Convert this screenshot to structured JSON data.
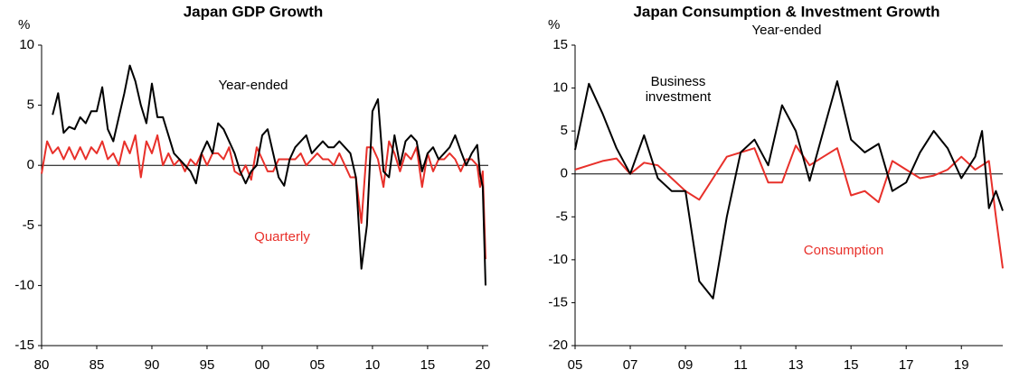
{
  "chart_data": [
    {
      "type": "line",
      "title": "Japan GDP Growth",
      "y_unit": "%",
      "annotations": [
        "Year-ended",
        "Quarterly"
      ],
      "x": [
        1980,
        1980.5,
        1981,
        1981.5,
        1982,
        1982.5,
        1983,
        1983.5,
        1984,
        1984.5,
        1985,
        1985.5,
        1986,
        1986.5,
        1987,
        1987.5,
        1988,
        1988.5,
        1989,
        1989.5,
        1990,
        1990.5,
        1991,
        1991.5,
        1992,
        1992.5,
        1993,
        1993.5,
        1994,
        1994.5,
        1995,
        1995.5,
        1996,
        1996.5,
        1997,
        1997.5,
        1998,
        1998.5,
        1999,
        1999.5,
        2000,
        2000.5,
        2001,
        2001.5,
        2002,
        2002.5,
        2003,
        2003.5,
        2004,
        2004.5,
        2005,
        2005.5,
        2006,
        2006.5,
        2007,
        2007.5,
        2008,
        2008.5,
        2009,
        2009.5,
        2010,
        2010.5,
        2011,
        2011.5,
        2012,
        2012.5,
        2013,
        2013.5,
        2014,
        2014.5,
        2015,
        2015.5,
        2016,
        2016.5,
        2017,
        2017.5,
        2018,
        2018.5,
        2019,
        2019.5,
        2019.75,
        2020,
        2020.25
      ],
      "series": [
        {
          "name": "Year-ended",
          "color": "#000000",
          "values": [
            null,
            null,
            4.2,
            6,
            2.7,
            3.2,
            3,
            4,
            3.5,
            4.5,
            4.5,
            6.5,
            3,
            2,
            4,
            6,
            8.3,
            7,
            5,
            3.5,
            6.8,
            4,
            4,
            2.5,
            1,
            0.5,
            0,
            -0.5,
            -1.5,
            1,
            2,
            1,
            3.5,
            3,
            2,
            1,
            -0.5,
            -1.5,
            -0.5,
            0,
            2.5,
            3,
            1,
            -1,
            -1.7,
            0.5,
            1.5,
            2,
            2.5,
            1,
            1.5,
            2,
            1.5,
            1.5,
            2,
            1.5,
            1,
            -1,
            -8.6,
            -5,
            4.5,
            5.5,
            -0.5,
            -1,
            2.5,
            0,
            2,
            2.5,
            2,
            -0.5,
            1,
            1.5,
            0.5,
            1,
            1.5,
            2.5,
            1.2,
            0,
            1,
            1.7,
            -0.7,
            -1.8,
            -10
          ]
        },
        {
          "name": "Quarterly",
          "color": "#e8302a",
          "values": [
            -0.7,
            2,
            1,
            1.5,
            0.5,
            1.5,
            0.5,
            1.5,
            0.5,
            1.5,
            1,
            2,
            0.5,
            1,
            0,
            2,
            1,
            2.5,
            -1,
            2,
            1,
            2.5,
            0,
            1,
            0,
            0.5,
            -0.5,
            0.5,
            0,
            1,
            0,
            1,
            1,
            0.5,
            1.5,
            -0.5,
            -0.8,
            0,
            -1.2,
            1.5,
            0.5,
            -0.5,
            -0.5,
            0.5,
            0.5,
            0.5,
            0.5,
            1,
            0,
            0.5,
            1,
            0.5,
            0.5,
            0,
            1,
            0,
            -1,
            -1,
            -4.8,
            1.5,
            1.5,
            0.5,
            -1.8,
            2,
            1,
            -0.5,
            1,
            0.5,
            1.5,
            -1.8,
            1,
            -0.5,
            0.5,
            0.5,
            1,
            0.5,
            -0.5,
            0.5,
            0.5,
            0,
            -1.8,
            -0.5,
            -7.8
          ]
        }
      ],
      "xlim": [
        1980,
        2020.5
      ],
      "xticks": [
        {
          "value": 1980,
          "label": "80"
        },
        {
          "value": 1985,
          "label": "85"
        },
        {
          "value": 1990,
          "label": "90"
        },
        {
          "value": 1995,
          "label": "95"
        },
        {
          "value": 2000,
          "label": "00"
        },
        {
          "value": 2005,
          "label": "05"
        },
        {
          "value": 2010,
          "label": "10"
        },
        {
          "value": 2015,
          "label": "15"
        },
        {
          "value": 2020,
          "label": "20"
        }
      ],
      "ylim": [
        -15,
        10
      ],
      "yticks": [
        -15,
        -10,
        -5,
        0,
        5,
        10
      ],
      "grid": false
    },
    {
      "type": "line",
      "title": "Japan Consumption  & Investment Growth",
      "subtitle": "Year-ended",
      "y_unit": "%",
      "annotations": [
        "Business investment",
        "Consumption"
      ],
      "x": [
        2005,
        2005.5,
        2006,
        2006.5,
        2007,
        2007.5,
        2008,
        2008.5,
        2009,
        2009.5,
        2010,
        2010.5,
        2011,
        2011.5,
        2012,
        2012.5,
        2013,
        2013.5,
        2014,
        2014.5,
        2015,
        2015.5,
        2016,
        2016.5,
        2017,
        2017.5,
        2018,
        2018.5,
        2019,
        2019.5,
        2019.75,
        2020,
        2020.25,
        2020.5
      ],
      "series": [
        {
          "name": "Business investment",
          "color": "#000000",
          "values": [
            2.8,
            10.5,
            7,
            3,
            0,
            4.5,
            -0.5,
            -2,
            -2,
            -12.5,
            -14.5,
            -5,
            2.5,
            4,
            1,
            8,
            5,
            -0.8,
            5,
            10.8,
            4,
            2.5,
            3.5,
            -2,
            -1,
            2.5,
            5,
            3,
            -0.5,
            2,
            5,
            -4,
            -2,
            -4.3
          ]
        },
        {
          "name": "Consumption",
          "color": "#e8302a",
          "values": [
            0.5,
            1,
            1.5,
            1.8,
            0,
            1.3,
            1,
            -0.5,
            -2,
            -3,
            -0.5,
            2,
            2.5,
            3,
            -1,
            -1,
            3.3,
            1,
            2,
            3,
            -2.5,
            -2,
            -3.3,
            1.5,
            0.5,
            -0.5,
            -0.2,
            0.5,
            2,
            0.5,
            1,
            1.5,
            -5,
            -11
          ]
        }
      ],
      "xlim": [
        2005,
        2020.5
      ],
      "xticks": [
        {
          "value": 2005,
          "label": "05"
        },
        {
          "value": 2007,
          "label": "07"
        },
        {
          "value": 2009,
          "label": "09"
        },
        {
          "value": 2011,
          "label": "11"
        },
        {
          "value": 2013,
          "label": "13"
        },
        {
          "value": 2015,
          "label": "15"
        },
        {
          "value": 2017,
          "label": "17"
        },
        {
          "value": 2019,
          "label": "19"
        }
      ],
      "ylim": [
        -20,
        15
      ],
      "yticks": [
        -20,
        -15,
        -10,
        -5,
        0,
        5,
        10,
        15
      ],
      "grid": false
    }
  ]
}
